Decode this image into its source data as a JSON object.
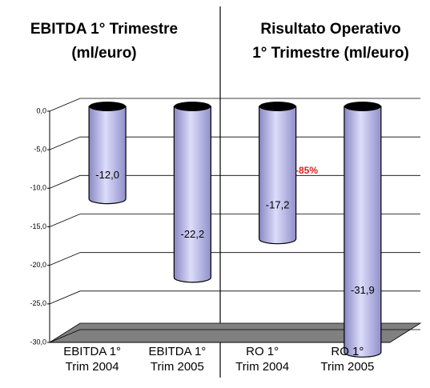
{
  "chart_data": {
    "type": "bar",
    "titles": [
      "EBITDA 1° Trimestre\n(ml/euro)",
      "Risultato Operativo\n1° Trimestre (ml/euro)"
    ],
    "categories": [
      "EBITDA 1°\nTrim 2004",
      "EBITDA 1°\nTrim 2005",
      "RO 1°\nTrim 2004",
      "RO 1°\nTrim 2005"
    ],
    "values": [
      -12.0,
      -22.2,
      -17.2,
      -31.9
    ],
    "value_labels": [
      "-12,0",
      "-22,2",
      "-17,2",
      "-31,9"
    ],
    "color": "#b4b4ec",
    "annotation": "-85%",
    "ylim": [
      -30,
      0
    ],
    "yticks": [
      {
        "value": 0,
        "label": "0,0"
      },
      {
        "value": -5,
        "label": "-5,0"
      },
      {
        "value": -10,
        "label": "-10,0"
      },
      {
        "value": -15,
        "label": "-15,0"
      },
      {
        "value": -20,
        "label": "-20,0"
      },
      {
        "value": -25,
        "label": "-25,0"
      },
      {
        "value": -30,
        "label": "-30,0"
      }
    ],
    "grid": true
  }
}
